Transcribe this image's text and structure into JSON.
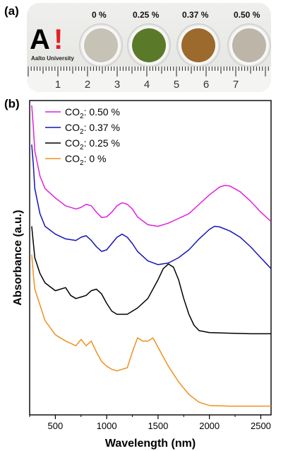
{
  "panel_a": {
    "label": "(a)",
    "logo": {
      "mark": "A",
      "exclaim": "!",
      "university": "Aalto University"
    },
    "samples": [
      {
        "label": "0 %",
        "color": "#c7c2b6"
      },
      {
        "label": "0.25 %",
        "color": "#5a7a2a"
      },
      {
        "label": "0.37 %",
        "color": "#9b6a2c"
      },
      {
        "label": "0.50 %",
        "color": "#bcb5a8"
      }
    ],
    "ruler_numbers": [
      "1",
      "2",
      "3",
      "4",
      "5",
      "6",
      "7"
    ]
  },
  "panel_b": {
    "label": "(b)"
  },
  "chart_data": {
    "type": "line",
    "title": "",
    "xlabel": "Wavelength (nm)",
    "ylabel": "Absorbance (a.u.)",
    "xlim": [
      250,
      2600
    ],
    "ylim": [
      0,
      1
    ],
    "x_ticks": [
      500,
      1000,
      1500,
      2000,
      2500
    ],
    "show_y_ticks": false,
    "grid": false,
    "legend_position": "top-left",
    "series": [
      {
        "name": "CO2: 0.50 %",
        "legend_main": "CO",
        "legend_sub": "2",
        "legend_rest": ": 0.50 %",
        "color": "#e020e0",
        "points": [
          [
            270,
            0.985
          ],
          [
            285,
            0.92
          ],
          [
            300,
            0.84
          ],
          [
            350,
            0.76
          ],
          [
            400,
            0.72
          ],
          [
            500,
            0.69
          ],
          [
            600,
            0.665
          ],
          [
            700,
            0.655
          ],
          [
            750,
            0.66
          ],
          [
            800,
            0.67
          ],
          [
            850,
            0.665
          ],
          [
            900,
            0.645
          ],
          [
            950,
            0.628
          ],
          [
            1000,
            0.63
          ],
          [
            1050,
            0.645
          ],
          [
            1100,
            0.665
          ],
          [
            1150,
            0.675
          ],
          [
            1200,
            0.67
          ],
          [
            1250,
            0.655
          ],
          [
            1300,
            0.63
          ],
          [
            1400,
            0.605
          ],
          [
            1500,
            0.6
          ],
          [
            1600,
            0.61
          ],
          [
            1700,
            0.625
          ],
          [
            1800,
            0.64
          ],
          [
            1900,
            0.67
          ],
          [
            2000,
            0.7
          ],
          [
            2100,
            0.725
          ],
          [
            2150,
            0.73
          ],
          [
            2200,
            0.728
          ],
          [
            2300,
            0.71
          ],
          [
            2400,
            0.68
          ],
          [
            2500,
            0.645
          ],
          [
            2600,
            0.615
          ]
        ]
      },
      {
        "name": "CO2: 0.37 %",
        "legend_main": "CO",
        "legend_sub": "2",
        "legend_rest": ": 0.37 %",
        "color": "#1515b5",
        "points": [
          [
            270,
            0.86
          ],
          [
            285,
            0.8
          ],
          [
            300,
            0.72
          ],
          [
            350,
            0.64
          ],
          [
            400,
            0.6
          ],
          [
            500,
            0.575
          ],
          [
            600,
            0.56
          ],
          [
            700,
            0.555
          ],
          [
            750,
            0.565
          ],
          [
            800,
            0.57
          ],
          [
            850,
            0.555
          ],
          [
            900,
            0.535
          ],
          [
            950,
            0.52
          ],
          [
            1000,
            0.525
          ],
          [
            1050,
            0.545
          ],
          [
            1100,
            0.565
          ],
          [
            1150,
            0.575
          ],
          [
            1200,
            0.565
          ],
          [
            1250,
            0.545
          ],
          [
            1300,
            0.52
          ],
          [
            1400,
            0.49
          ],
          [
            1500,
            0.478
          ],
          [
            1600,
            0.483
          ],
          [
            1700,
            0.5
          ],
          [
            1800,
            0.525
          ],
          [
            1900,
            0.56
          ],
          [
            2000,
            0.59
          ],
          [
            2050,
            0.6
          ],
          [
            2100,
            0.598
          ],
          [
            2200,
            0.585
          ],
          [
            2300,
            0.565
          ],
          [
            2400,
            0.535
          ],
          [
            2500,
            0.5
          ],
          [
            2600,
            0.465
          ]
        ]
      },
      {
        "name": "CO2: 0.25 %",
        "legend_main": "CO",
        "legend_sub": "2",
        "legend_rest": ": 0.25 %",
        "color": "#000000",
        "points": [
          [
            270,
            0.6
          ],
          [
            285,
            0.55
          ],
          [
            300,
            0.5
          ],
          [
            350,
            0.45
          ],
          [
            400,
            0.42
          ],
          [
            500,
            0.395
          ],
          [
            600,
            0.405
          ],
          [
            650,
            0.38
          ],
          [
            700,
            0.37
          ],
          [
            750,
            0.375
          ],
          [
            800,
            0.38
          ],
          [
            850,
            0.395
          ],
          [
            900,
            0.4
          ],
          [
            950,
            0.385
          ],
          [
            1000,
            0.355
          ],
          [
            1050,
            0.33
          ],
          [
            1100,
            0.32
          ],
          [
            1200,
            0.32
          ],
          [
            1300,
            0.34
          ],
          [
            1400,
            0.37
          ],
          [
            1500,
            0.43
          ],
          [
            1550,
            0.465
          ],
          [
            1600,
            0.48
          ],
          [
            1650,
            0.47
          ],
          [
            1700,
            0.43
          ],
          [
            1750,
            0.37
          ],
          [
            1800,
            0.32
          ],
          [
            1850,
            0.285
          ],
          [
            1900,
            0.268
          ],
          [
            2000,
            0.262
          ],
          [
            2200,
            0.26
          ],
          [
            2400,
            0.258
          ],
          [
            2600,
            0.258
          ]
        ]
      },
      {
        "name": "CO2: 0 %",
        "legend_main": "CO",
        "legend_sub": "2",
        "legend_rest": ": 0 %",
        "color": "#f0901e",
        "points": [
          [
            270,
            0.51
          ],
          [
            285,
            0.45
          ],
          [
            300,
            0.4
          ],
          [
            350,
            0.35
          ],
          [
            400,
            0.3
          ],
          [
            500,
            0.255
          ],
          [
            600,
            0.235
          ],
          [
            700,
            0.22
          ],
          [
            750,
            0.24
          ],
          [
            800,
            0.22
          ],
          [
            850,
            0.235
          ],
          [
            900,
            0.2
          ],
          [
            950,
            0.17
          ],
          [
            1000,
            0.155
          ],
          [
            1050,
            0.145
          ],
          [
            1100,
            0.14
          ],
          [
            1200,
            0.15
          ],
          [
            1250,
            0.2
          ],
          [
            1300,
            0.245
          ],
          [
            1350,
            0.235
          ],
          [
            1400,
            0.235
          ],
          [
            1450,
            0.245
          ],
          [
            1500,
            0.215
          ],
          [
            1600,
            0.155
          ],
          [
            1700,
            0.105
          ],
          [
            1800,
            0.065
          ],
          [
            1900,
            0.04
          ],
          [
            2000,
            0.03
          ],
          [
            2200,
            0.028
          ],
          [
            2400,
            0.028
          ],
          [
            2600,
            0.028
          ]
        ]
      }
    ]
  }
}
